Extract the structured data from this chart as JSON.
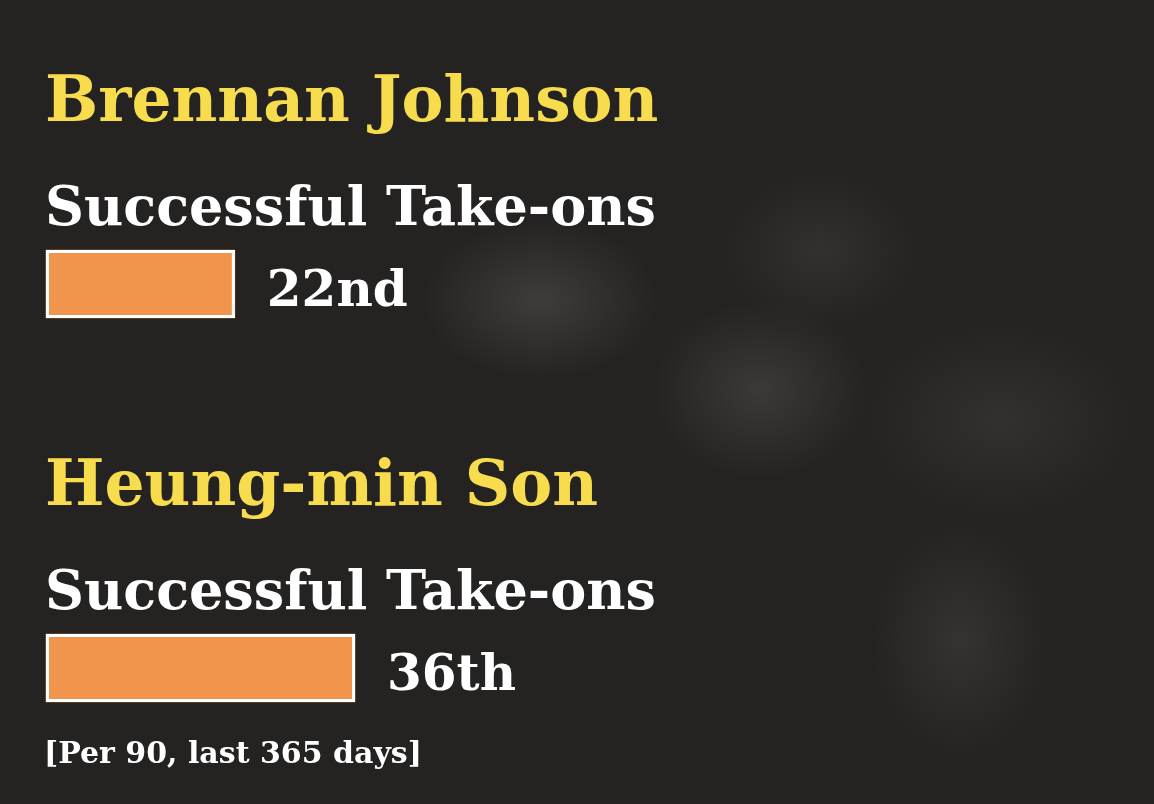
{
  "chart_data": {
    "type": "bar",
    "orientation": "horizontal",
    "tick_labels": "y",
    "categories": [
      "Brennan Johnson",
      "Heung-min Son"
    ],
    "xlabel": "Successful Take-ons",
    "values": [
      22,
      36
    ],
    "value_labels": [
      "22nd",
      "36th"
    ],
    "color": "#f0954b",
    "annotations": [
      "[Per 90, last 365 days]"
    ]
  }
}
